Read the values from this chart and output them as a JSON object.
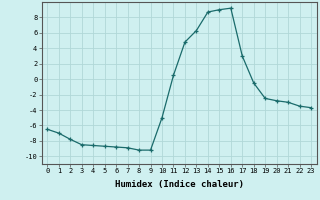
{
  "x": [
    0,
    1,
    2,
    3,
    4,
    5,
    6,
    7,
    8,
    9,
    10,
    11,
    12,
    13,
    14,
    15,
    16,
    17,
    18,
    19,
    20,
    21,
    22,
    23
  ],
  "y": [
    -6.5,
    -7.0,
    -7.8,
    -8.5,
    -8.6,
    -8.7,
    -8.8,
    -8.9,
    -9.2,
    -9.2,
    -5.0,
    0.5,
    4.8,
    6.3,
    8.7,
    9.0,
    9.2,
    3.0,
    -0.5,
    -2.5,
    -2.8,
    -3.0,
    -3.5,
    -3.7
  ],
  "line_color": "#1a6b6b",
  "marker": "+",
  "bg_color": "#cff0f0",
  "grid_color": "#b0d8d8",
  "xlabel": "Humidex (Indice chaleur)",
  "xlim": [
    -0.5,
    23.5
  ],
  "ylim": [
    -11,
    10
  ],
  "yticks": [
    -10,
    -8,
    -6,
    -4,
    -2,
    0,
    2,
    4,
    6,
    8
  ],
  "xticks": [
    0,
    1,
    2,
    3,
    4,
    5,
    6,
    7,
    8,
    9,
    10,
    11,
    12,
    13,
    14,
    15,
    16,
    17,
    18,
    19,
    20,
    21,
    22,
    23
  ],
  "tick_fontsize": 5.0,
  "xlabel_fontsize": 6.5
}
